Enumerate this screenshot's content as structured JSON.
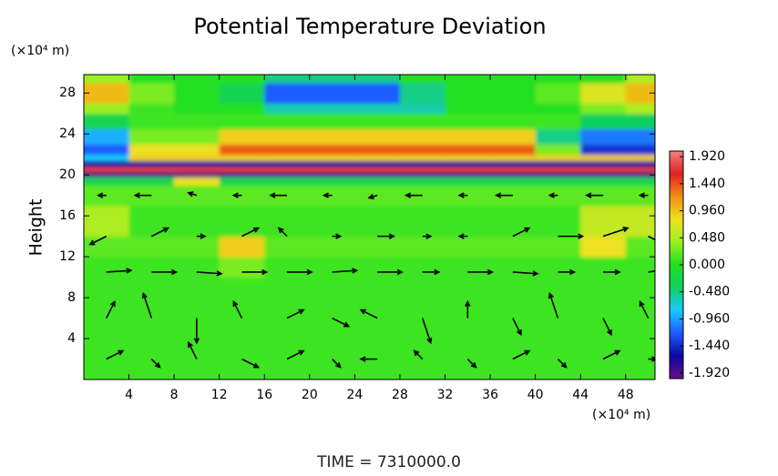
{
  "chart_data": {
    "type": "heatmap",
    "title": "Potential Temperature Deviation",
    "y_label": "Height",
    "y_unit": "(×10⁴ m)",
    "x_unit": "(×10⁴ m)",
    "footer": "TIME = 7310000.0",
    "xlim": [
      0,
      50.6
    ],
    "ylim": [
      0,
      29.8
    ],
    "xticks": [
      4,
      8,
      12,
      16,
      20,
      24,
      28,
      32,
      36,
      40,
      44,
      48
    ],
    "yticks": [
      4,
      8,
      12,
      16,
      20,
      24,
      28
    ],
    "zlim": [
      -2.02,
      2.02
    ],
    "zticks": [
      {
        "value": 1.92,
        "label": "1.920"
      },
      {
        "value": 1.44,
        "label": "1.440"
      },
      {
        "value": 0.96,
        "label": "0.960"
      },
      {
        "value": 0.48,
        "label": "0.480"
      },
      {
        "value": 0,
        "label": "0.000"
      },
      {
        "value": -0.48,
        "label": "-0.480"
      },
      {
        "value": -0.96,
        "label": "-0.960"
      },
      {
        "value": -1.44,
        "label": "-1.440"
      },
      {
        "value": -1.92,
        "label": "-1.920"
      }
    ],
    "colormap": [
      "#6a0d8a",
      "#0a0aa0",
      "#1e5aff",
      "#19c8ff",
      "#10d060",
      "#20e020",
      "#9af020",
      "#f0e020",
      "#f09010",
      "#e02020",
      "#f08080"
    ],
    "x_edges": [
      0,
      4,
      8,
      12,
      16,
      20,
      24,
      28,
      32,
      36,
      40,
      44,
      48,
      50.6
    ],
    "y_edges": [
      0,
      10,
      12,
      14,
      17,
      19,
      19.8,
      20.3,
      20.8,
      21.4,
      22,
      23,
      24.5,
      26,
      27,
      29,
      29.8
    ],
    "z": [
      [
        0.1,
        0.1,
        0.1,
        0.1,
        0.1,
        0.1,
        0.1,
        0.1,
        0.1,
        0.1,
        0.1,
        0.1,
        0.1
      ],
      [
        0.1,
        0.1,
        0.1,
        0.3,
        0.1,
        0.1,
        0.1,
        0.1,
        0.1,
        0.1,
        0.1,
        0.1,
        0.1
      ],
      [
        0.2,
        0.2,
        0.2,
        0.9,
        0.2,
        0.2,
        0.2,
        0.2,
        0.2,
        0.2,
        0.2,
        0.8,
        0.2
      ],
      [
        0.5,
        0.1,
        0.1,
        0.1,
        0.1,
        0.1,
        0.1,
        0.1,
        0.1,
        0.1,
        0.1,
        0.6,
        0.6
      ],
      [
        0.2,
        0.2,
        0.2,
        0.2,
        0.2,
        0.2,
        0.2,
        0.2,
        0.2,
        0.2,
        0.2,
        0.2,
        0.2
      ],
      [
        -0.3,
        -0.3,
        0.8,
        -0.3,
        -0.3,
        -0.3,
        -0.3,
        -0.3,
        -0.3,
        -0.3,
        -0.3,
        -0.3,
        -0.3
      ],
      [
        -1.9,
        -1.9,
        -1.9,
        -1.9,
        -1.9,
        -1.9,
        -1.9,
        -1.9,
        -1.9,
        -1.9,
        -1.9,
        -1.9,
        -1.9
      ],
      [
        1.5,
        1.5,
        1.5,
        1.5,
        1.5,
        1.5,
        1.5,
        1.5,
        1.5,
        1.5,
        1.5,
        1.5,
        1.5
      ],
      [
        -1.6,
        -1.6,
        -1.6,
        -1.6,
        -1.6,
        -1.6,
        -1.6,
        -1.6,
        -1.6,
        -1.6,
        -1.6,
        -1.6,
        -1.6
      ],
      [
        -0.8,
        0.9,
        0.9,
        0.9,
        0.9,
        0.9,
        0.9,
        0.9,
        0.9,
        0.9,
        0.9,
        0.9,
        0.9
      ],
      [
        -1.2,
        0.8,
        0.8,
        1.4,
        1.4,
        1.4,
        1.4,
        1.4,
        1.4,
        1.4,
        0.3,
        -1.4,
        -1.4
      ],
      [
        -0.9,
        0.3,
        0.3,
        0.9,
        0.9,
        0.9,
        0.9,
        0.9,
        0.9,
        0.9,
        -0.5,
        -1.1,
        -1.1
      ],
      [
        -0.3,
        0.1,
        0.1,
        0.1,
        0.1,
        0.1,
        0.1,
        0.1,
        0.1,
        0.1,
        0.1,
        -0.4,
        -0.4
      ],
      [
        0.4,
        0.1,
        0,
        0,
        -0.6,
        -0.6,
        -0.6,
        -0.6,
        0,
        0,
        0,
        0.3,
        0.5
      ],
      [
        1.0,
        0.3,
        0,
        -0.3,
        -1.2,
        -1.2,
        -1.2,
        -0.5,
        0,
        0,
        0.2,
        0.7,
        1.0
      ],
      [
        0.4,
        0,
        0,
        0,
        -0.5,
        -0.5,
        -0.5,
        0,
        0,
        0,
        0,
        0,
        0.5
      ]
    ],
    "vector_x": [
      2,
      6,
      10,
      14,
      18,
      22,
      26,
      30,
      34,
      38,
      42,
      46,
      50
    ],
    "vector_y": [
      2,
      6,
      10.5,
      14,
      18
    ],
    "u": [
      [
        2,
        1,
        -1,
        2,
        2,
        1,
        -2,
        -1,
        1,
        2,
        1,
        2,
        1
      ],
      [
        1,
        -1,
        0,
        -1,
        2,
        2,
        -2,
        1,
        0,
        1,
        -1,
        1,
        -1
      ],
      [
        3,
        3,
        3,
        3,
        3,
        3,
        3,
        2,
        3,
        3,
        2,
        2,
        2
      ],
      [
        -2,
        2,
        1,
        2,
        -1,
        1,
        2,
        1,
        -1,
        2,
        3,
        3,
        2
      ],
      [
        -1,
        -2,
        -1,
        -1,
        -2,
        -1,
        -1,
        -2,
        -1,
        -2,
        -1,
        -2,
        -1
      ]
    ],
    "v": [
      [
        1,
        -1,
        2,
        -1,
        1,
        -1,
        0,
        1,
        -1,
        1,
        -1,
        1,
        0
      ],
      [
        2,
        3,
        -3,
        2,
        1,
        -1,
        1,
        -3,
        2,
        -2,
        3,
        -2,
        2
      ],
      [
        0.2,
        0,
        -0.2,
        0,
        0,
        0.2,
        0,
        0,
        0,
        -0.2,
        0,
        0,
        0.3
      ],
      [
        -1,
        1,
        0,
        1,
        1,
        0,
        0,
        0,
        0,
        1,
        0,
        1,
        -1
      ],
      [
        0,
        0,
        0.3,
        0,
        0,
        0,
        -0.3,
        0,
        0,
        0,
        0,
        0,
        0
      ]
    ]
  }
}
